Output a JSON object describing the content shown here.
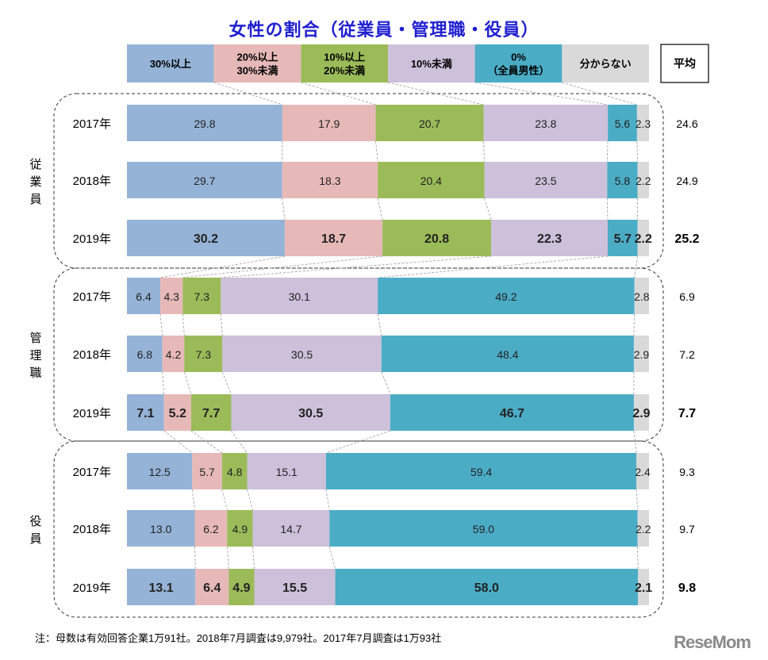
{
  "chart_data": {
    "type": "bar",
    "orientation": "horizontal",
    "stacked": true,
    "title": "女性の割合（従業員・管理職・役員）",
    "legend_position": "top",
    "categories_legend": [
      "30%以上",
      "20%以上\n30%未満",
      "10%以上\n20%未満",
      "10%未満",
      "0%\n（全員男性）",
      "分からない"
    ],
    "series_colors": [
      "#95b3d7",
      "#e6b9b8",
      "#9bbb59",
      "#ccc0da",
      "#4bacc6",
      "#d9d9d9"
    ],
    "average_header": "平均",
    "groups": [
      {
        "name": "従業員",
        "rows": [
          {
            "year": "2017年",
            "values": [
              29.8,
              17.9,
              20.7,
              23.8,
              5.6,
              2.3
            ],
            "average": 24.6
          },
          {
            "year": "2018年",
            "values": [
              29.7,
              18.3,
              20.4,
              23.5,
              5.8,
              2.2
            ],
            "average": 24.9
          },
          {
            "year": "2019年",
            "values": [
              30.2,
              18.7,
              20.8,
              22.3,
              5.7,
              2.2
            ],
            "average": 25.2
          }
        ]
      },
      {
        "name": "管理職",
        "rows": [
          {
            "year": "2017年",
            "values": [
              6.4,
              4.3,
              7.3,
              30.1,
              49.2,
              2.8
            ],
            "average": 6.9
          },
          {
            "year": "2018年",
            "values": [
              6.8,
              4.2,
              7.3,
              30.5,
              48.4,
              2.9
            ],
            "average": 7.2
          },
          {
            "year": "2019年",
            "values": [
              7.1,
              5.2,
              7.7,
              30.5,
              46.7,
              2.9
            ],
            "average": 7.7
          }
        ]
      },
      {
        "name": "役員",
        "rows": [
          {
            "year": "2017年",
            "values": [
              12.5,
              5.7,
              4.8,
              15.1,
              59.4,
              2.4
            ],
            "average": 9.3
          },
          {
            "year": "2018年",
            "values": [
              13.0,
              6.2,
              4.9,
              14.7,
              59.0,
              2.2
            ],
            "average": 9.7
          },
          {
            "year": "2019年",
            "values": [
              13.1,
              6.4,
              4.9,
              15.5,
              58.0,
              2.1
            ],
            "average": 9.8
          }
        ]
      }
    ],
    "unit": "%"
  },
  "note": "注：母数は有効回答企業1万91社。2018年7月調査は9,979社。2017年7月調査は1万93社",
  "logo": "ReseMom"
}
